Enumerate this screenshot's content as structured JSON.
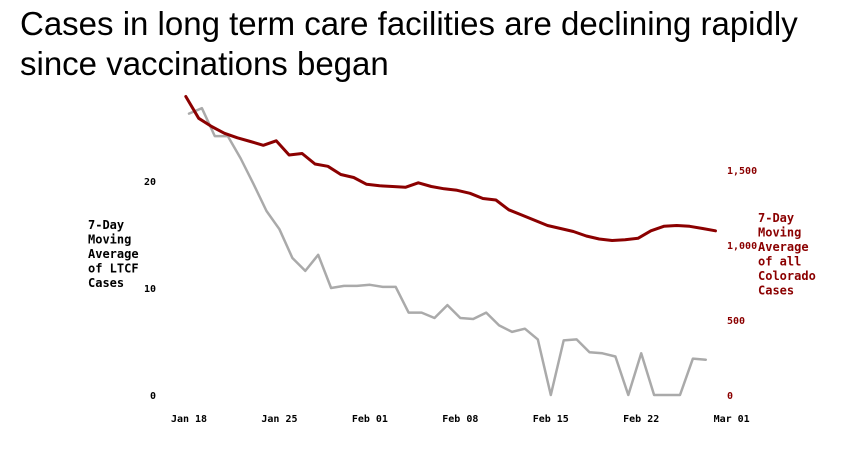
{
  "title": "Cases in long term care facilities are declining rapidly since vaccinations began",
  "chart_data": {
    "type": "line",
    "x_start": "Jan 17",
    "x_ticks": [
      "Jan 18",
      "Jan 25",
      "Feb 01",
      "Feb 08",
      "Feb 15",
      "Feb 22",
      "Mar 01"
    ],
    "y_left": {
      "label": [
        "7-Day",
        "Moving",
        "Average",
        "of LTCF",
        "Cases"
      ],
      "ticks": [
        "0",
        "10",
        "20"
      ],
      "tick_values": [
        0,
        10,
        20
      ],
      "range": [
        0,
        30
      ]
    },
    "y_right": {
      "label": [
        "7-Day",
        "Moving",
        "Average",
        "of all",
        "Colorado",
        "Cases"
      ],
      "ticks": [
        "0",
        "500",
        "1,000",
        "1,500"
      ],
      "tick_values": [
        0,
        500,
        1000,
        1500
      ],
      "range": [
        0,
        2250
      ],
      "color": "#8b0000"
    },
    "series": [
      {
        "name": "",
        "axis": "left",
        "color": "#aaaaaa",
        "values": [
          26.3,
          26.8,
          24.2,
          24.2,
          22.1,
          19.7,
          17.2,
          15.5,
          12.8,
          11.6,
          13.1,
          10,
          10.2,
          10.2,
          10.3,
          10.1,
          10.1,
          7.7,
          7.7,
          7.2,
          8.4,
          7.2,
          7.1,
          7.7,
          6.5,
          5.9,
          6.2,
          5.2,
          0,
          5.1,
          5.2,
          4,
          3.9,
          3.6,
          0,
          3.9,
          0,
          0,
          0,
          3.4,
          3.3
        ]
      },
      {
        "name": "",
        "axis": "right",
        "color": "#8b0000",
        "values": [
          1990,
          1845,
          1790,
          1745,
          1715,
          1690,
          1665,
          1695,
          1600,
          1610,
          1540,
          1525,
          1470,
          1450,
          1405,
          1395,
          1390,
          1385,
          1415,
          1390,
          1375,
          1365,
          1345,
          1310,
          1300,
          1235,
          1200,
          1165,
          1130,
          1110,
          1090,
          1060,
          1040,
          1030,
          1035,
          1045,
          1095,
          1125,
          1130,
          1125,
          1110,
          1095
        ]
      }
    ],
    "grid": false,
    "legend": "none"
  }
}
